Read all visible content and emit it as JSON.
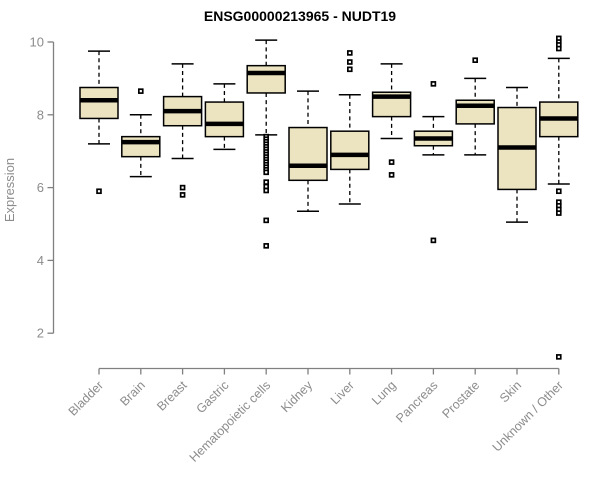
{
  "chart_data": {
    "type": "box",
    "title": "ENSG00000213965 - NUDT19",
    "ylabel": "Expression",
    "yticks": [
      2,
      4,
      6,
      8,
      10
    ],
    "ylim": [
      1.2,
      10.3
    ],
    "grid": false,
    "legend": "none",
    "categories": [
      "Bladder",
      "Brain",
      "Breast",
      "Gastric",
      "Hematopoietic cells",
      "Kidney",
      "Liver",
      "Lung",
      "Pancreas",
      "Prostate",
      "Skin",
      "Unknown / Other"
    ],
    "boxes": [
      {
        "category": "Bladder",
        "low": 7.2,
        "q1": 7.9,
        "median": 8.4,
        "q3": 8.75,
        "high": 9.75,
        "outliers": [
          5.9
        ]
      },
      {
        "category": "Brain",
        "low": 6.3,
        "q1": 6.85,
        "median": 7.25,
        "q3": 7.4,
        "high": 8.0,
        "outliers": [
          8.65
        ]
      },
      {
        "category": "Breast",
        "low": 6.8,
        "q1": 7.7,
        "median": 8.1,
        "q3": 8.5,
        "high": 9.4,
        "outliers": [
          6.0,
          5.8
        ]
      },
      {
        "category": "Gastric",
        "low": 7.05,
        "q1": 7.4,
        "median": 7.75,
        "q3": 8.35,
        "high": 8.85,
        "outliers": []
      },
      {
        "category": "Hematopoietic cells",
        "low": 7.45,
        "q1": 8.6,
        "median": 9.15,
        "q3": 9.35,
        "high": 10.05,
        "outliers": [
          7.4,
          7.33,
          7.26,
          7.19,
          7.12,
          7.05,
          6.98,
          6.91,
          6.84,
          6.77,
          6.7,
          6.63,
          6.56,
          6.49,
          6.42,
          6.15,
          6.03,
          5.92,
          5.1,
          4.4
        ]
      },
      {
        "category": "Kidney",
        "low": 5.35,
        "q1": 6.2,
        "median": 6.6,
        "q3": 7.65,
        "high": 8.65,
        "outliers": []
      },
      {
        "category": "Liver",
        "low": 5.55,
        "q1": 6.5,
        "median": 6.9,
        "q3": 7.55,
        "high": 8.55,
        "outliers": [
          9.7,
          9.45,
          9.25
        ]
      },
      {
        "category": "Lung",
        "low": 7.35,
        "q1": 7.95,
        "median": 8.5,
        "q3": 8.62,
        "high": 9.4,
        "outliers": [
          6.7,
          6.35
        ]
      },
      {
        "category": "Pancreas",
        "low": 6.9,
        "q1": 7.15,
        "median": 7.35,
        "q3": 7.55,
        "high": 7.95,
        "outliers": [
          8.85,
          4.55
        ]
      },
      {
        "category": "Prostate",
        "low": 6.9,
        "q1": 7.75,
        "median": 8.25,
        "q3": 8.4,
        "high": 9.0,
        "outliers": [
          9.5
        ]
      },
      {
        "category": "Skin",
        "low": 5.05,
        "q1": 5.95,
        "median": 7.1,
        "q3": 8.2,
        "high": 8.75,
        "outliers": []
      },
      {
        "category": "Unknown / Other",
        "low": 6.1,
        "q1": 7.4,
        "median": 7.9,
        "q3": 8.35,
        "high": 9.55,
        "outliers": [
          10.1,
          10.0,
          9.92,
          9.82,
          5.9,
          5.6,
          5.5,
          5.4,
          5.3,
          1.35
        ]
      }
    ],
    "colors": {
      "box_fill": "#ECE4C1",
      "box_stroke": "#000000",
      "median": "#000000",
      "outlier": "#000000",
      "axis": "#808080",
      "tick_label": "#8C8C8C",
      "title": "#000000",
      "background": "#FFFFFF"
    }
  }
}
